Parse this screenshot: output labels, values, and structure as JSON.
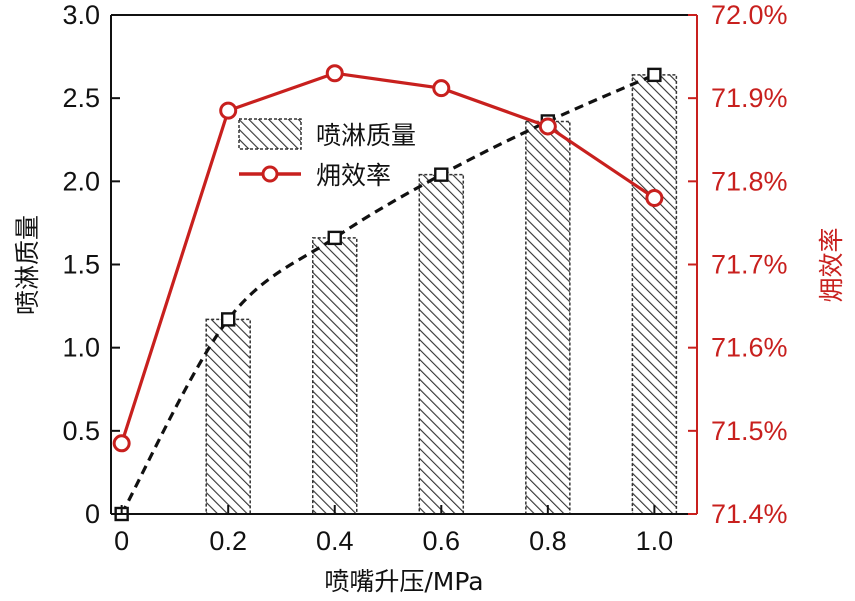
{
  "chart_data": {
    "type": "bar+line",
    "title": "",
    "xlabel": "喷嘴升压/MPa",
    "ylabel_left": "喷淋质量",
    "ylabel_right": "㶲效率",
    "categories": [
      "0",
      "0.2",
      "0.4",
      "0.6",
      "0.8",
      "1.0"
    ],
    "x": [
      0,
      0.2,
      0.4,
      0.6,
      0.8,
      1.0
    ],
    "xlim": [
      -0.02,
      1.08
    ],
    "ylim_left": [
      0,
      3.0
    ],
    "ylim_right": [
      71.4,
      72.0
    ],
    "left_ticks": [
      "0",
      "0.5",
      "1.0",
      "1.5",
      "2.0",
      "2.5",
      "3.0"
    ],
    "right_ticks": [
      "71.4%",
      "71.5%",
      "71.6%",
      "71.7%",
      "71.8%",
      "71.9%",
      "72.0%"
    ],
    "bar_series": {
      "name": "喷淋质量",
      "axis": "left",
      "values": [
        0,
        1.17,
        1.66,
        2.04,
        2.36,
        2.64
      ],
      "color": "#333333",
      "marker_color": "#111111",
      "fit_line_color": "#111111"
    },
    "line_series": {
      "name": "㶲效率",
      "axis": "right",
      "values": [
        71.485,
        71.885,
        71.93,
        71.912,
        71.866,
        71.78
      ],
      "color": "#c8201e"
    },
    "legend": {
      "position": "top-left",
      "entries": [
        "喷淋质量",
        "㶲效率"
      ]
    },
    "grid": false
  }
}
